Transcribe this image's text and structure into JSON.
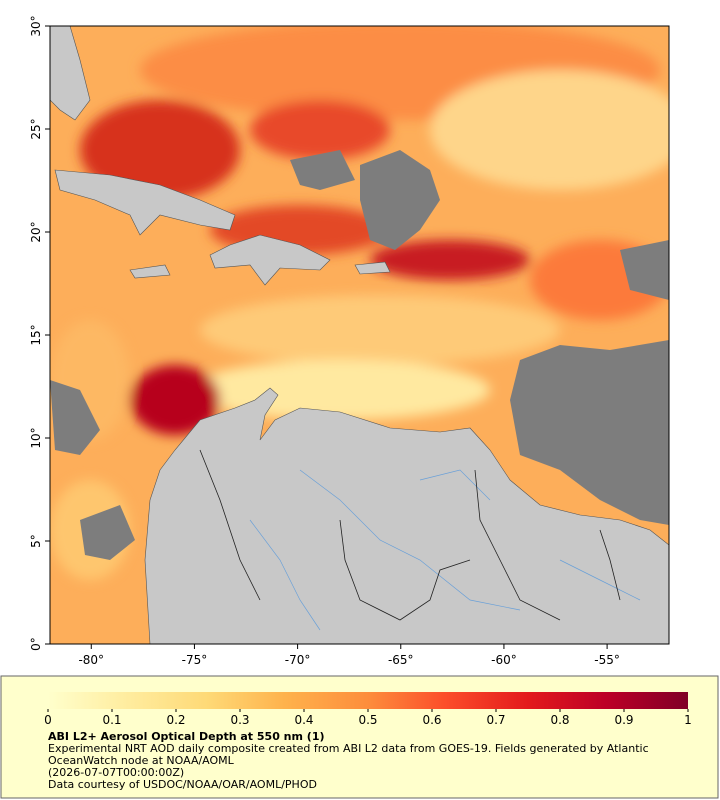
{
  "map": {
    "type": "map",
    "xlim": [
      -82,
      -52
    ],
    "ylim": [
      0,
      30
    ],
    "xticks": [
      {
        "value": -80,
        "label": "-80°"
      },
      {
        "value": -75,
        "label": "-75°"
      },
      {
        "value": -70,
        "label": "-70°"
      },
      {
        "value": -65,
        "label": "-65°"
      },
      {
        "value": -60,
        "label": "-60°"
      },
      {
        "value": -55,
        "label": "-55°"
      }
    ],
    "yticks": [
      {
        "value": 0,
        "label": "0°"
      },
      {
        "value": 5,
        "label": "5°"
      },
      {
        "value": 10,
        "label": "10°"
      },
      {
        "value": 15,
        "label": "15°"
      },
      {
        "value": 20,
        "label": "20°"
      },
      {
        "value": 25,
        "label": "25°"
      },
      {
        "value": 30,
        "label": "30°"
      }
    ]
  },
  "colorbar": {
    "title": "ABI L2+ Aerosol Optical Depth at 550 nm (1)",
    "lim": [
      0,
      1
    ],
    "ticks": [
      0,
      0.1,
      0.2,
      0.3,
      0.4,
      0.5,
      0.6,
      0.7,
      0.8,
      0.9,
      1
    ]
  },
  "caption": {
    "description": "Experimental NRT AOD daily composite created from ABI L2 data from GOES-19. Fields generated by Atlantic OceanWatch node at NOAA/AOML",
    "timestamp": "(2026-07-07T00:00:00Z)",
    "credit": "Data courtesy of USDOC/NOAA/OAR/AOML/PHOD"
  }
}
